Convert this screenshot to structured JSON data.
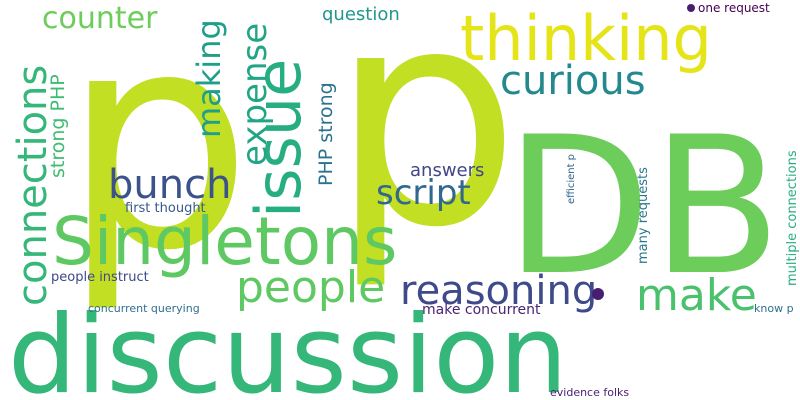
{
  "words": [
    {
      "id": "p-left",
      "text": "p",
      "color": "#c2df23"
    },
    {
      "id": "p-right",
      "text": "p",
      "color": "#c2df23"
    },
    {
      "id": "db",
      "text": "DB",
      "color": "#6ccd5a"
    },
    {
      "id": "discussion",
      "text": "discussion",
      "color": "#35b779"
    },
    {
      "id": "singletons",
      "text": "Singletons",
      "color": "#5ec962"
    },
    {
      "id": "thinking",
      "text": "thinking",
      "color": "#e5e419"
    },
    {
      "id": "issue",
      "text": "issue",
      "color": "#26ad81"
    },
    {
      "id": "curious",
      "text": "curious",
      "color": "#23898e"
    },
    {
      "id": "connections",
      "text": "connections",
      "color": "#35b779"
    },
    {
      "id": "people",
      "text": "people",
      "color": "#5ec962"
    },
    {
      "id": "reasoning",
      "text": "reasoning",
      "color": "#3e4a89"
    },
    {
      "id": "make",
      "text": "make",
      "color": "#4ac16d"
    },
    {
      "id": "bunch",
      "text": "bunch",
      "color": "#3b528b"
    },
    {
      "id": "script",
      "text": "script",
      "color": "#31688e"
    },
    {
      "id": "expense",
      "text": "expense",
      "color": "#21a585"
    },
    {
      "id": "making",
      "text": "making",
      "color": "#1f9e89"
    },
    {
      "id": "counter",
      "text": "counter",
      "color": "#6ccd5a"
    },
    {
      "id": "strong-php-left",
      "text": "strong PHP",
      "color": "#3fbc73"
    },
    {
      "id": "php-strong",
      "text": "PHP strong",
      "color": "#2c728e"
    },
    {
      "id": "question",
      "text": "question",
      "color": "#1f988b"
    },
    {
      "id": "answers",
      "text": "answers",
      "color": "#404688"
    },
    {
      "id": "first-thought",
      "text": "first thought",
      "color": "#38598c"
    },
    {
      "id": "people-instruct",
      "text": "people instruct",
      "color": "#3e4989"
    },
    {
      "id": "concurrent-querying",
      "text": "concurrent querying",
      "color": "#2d708e"
    },
    {
      "id": "make-concurrent",
      "text": "make concurrent",
      "color": "#482475"
    },
    {
      "id": "many-requests",
      "text": "many requests",
      "color": "#2a788e"
    },
    {
      "id": "multiple-connections",
      "text": "multiple connections",
      "color": "#29af7f"
    },
    {
      "id": "efficient-p",
      "text": "efficient p",
      "color": "#33638d"
    },
    {
      "id": "one-request",
      "text": "one request",
      "color": "#440154"
    },
    {
      "id": "know-p",
      "text": "know p",
      "color": "#2e6f8e"
    },
    {
      "id": "evidence-folks",
      "text": "evidence folks",
      "color": "#481f70"
    },
    {
      "id": "dot-top",
      "text": "",
      "color": "#481f70"
    },
    {
      "id": "dot-mid",
      "text": "",
      "color": "#481f70"
    }
  ]
}
